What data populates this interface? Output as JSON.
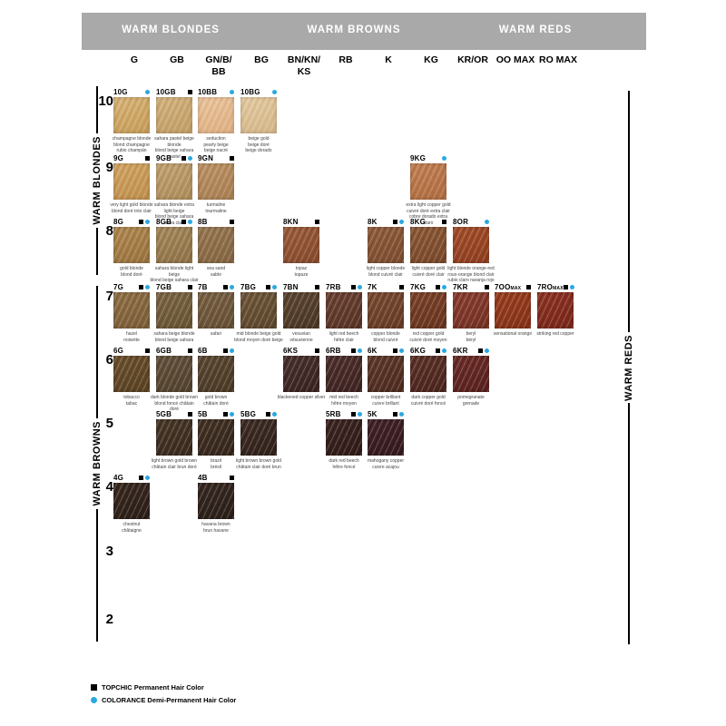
{
  "sections": [
    {
      "label": "WARM BLONDES"
    },
    {
      "label": "WARM BROWNS"
    },
    {
      "label": "WARM REDS"
    }
  ],
  "column_headers": [
    "G",
    "GB",
    "GN/B/\nBB",
    "BG",
    "BN/KN/\nKS",
    "RB",
    "K",
    "KG",
    "KR/OR",
    "OO MAX",
    "RO MAX"
  ],
  "side_labels": {
    "left_top": "WARM BLONDES",
    "left_bottom": "WARM BROWNS",
    "right": "WARM REDS"
  },
  "colors": {
    "topchic": "#000000",
    "colorance": "#2aa9e0",
    "header_bar": "#a9a9a9"
  },
  "legend": [
    {
      "marker": "topchic",
      "label": "TOPCHIC Permanent Hair Color"
    },
    {
      "marker": "colorance",
      "label": "COLORANCE Demi-Permanent Hair Color"
    }
  ],
  "levels": [
    {
      "level": "10",
      "swatches": [
        {
          "code": "10G",
          "suffix": "",
          "col": 0,
          "marks": [
            "colorance"
          ],
          "base": "#d8b57c",
          "streak": "#c49a55",
          "desc": "champagne blonde\nblond champagne\nrubio champán"
        },
        {
          "code": "10GB",
          "suffix": "",
          "col": 1,
          "marks": [
            "topchic"
          ],
          "base": "#d3b382",
          "streak": "#bf9c62",
          "desc": "sahara pastel beige blonde\nblond beige sahara pastel"
        },
        {
          "code": "10BB",
          "suffix": "",
          "col": 2,
          "marks": [
            "colorance"
          ],
          "base": "#e9c69f",
          "streak": "#ddad80",
          "desc": "seduction\npearly beige\nbeige nacré"
        },
        {
          "code": "10BG",
          "suffix": "",
          "col": 3,
          "marks": [
            "colorance"
          ],
          "base": "#e4cba4",
          "streak": "#d3b586",
          "desc": "beige gold\nbeige doré\nbeige dorado"
        }
      ]
    },
    {
      "level": "9",
      "swatches": [
        {
          "code": "9G",
          "suffix": "",
          "col": 0,
          "marks": [
            "topchic"
          ],
          "base": "#d2a667",
          "streak": "#bd8d4a",
          "desc": "very light gold blonde\nblond doré très clair"
        },
        {
          "code": "9GB",
          "suffix": "",
          "col": 1,
          "marks": [
            "topchic",
            "colorance"
          ],
          "base": "#c2a474",
          "streak": "#ab8a58",
          "desc": "sahara blonde extra light beige\nblond beige sahara extra clair"
        },
        {
          "code": "9GN",
          "suffix": "",
          "col": 2,
          "marks": [
            "topchic"
          ],
          "base": "#bd9469",
          "streak": "#a67d50",
          "desc": "turmaline\ntourmaline"
        },
        {
          "code": "9KG",
          "suffix": "",
          "col": 7,
          "marks": [
            "colorance"
          ],
          "base": "#c28257",
          "streak": "#ad6a3e",
          "desc": "extra light copper gold\ncuivré doré extra clair\ncobre dorado extra claro"
        }
      ]
    },
    {
      "level": "8",
      "swatches": [
        {
          "code": "8G",
          "suffix": "",
          "col": 0,
          "marks": [
            "topchic",
            "colorance"
          ],
          "base": "#b08a52",
          "streak": "#97703c",
          "desc": "gold blonde\nblond doré"
        },
        {
          "code": "8GB",
          "suffix": "",
          "col": 1,
          "marks": [
            "topchic",
            "colorance"
          ],
          "base": "#a68a5d",
          "streak": "#8d7045",
          "desc": "sahara blonde light beige\nblond beige sahara clair"
        },
        {
          "code": "8B",
          "suffix": "",
          "col": 2,
          "marks": [
            "topchic"
          ],
          "base": "#997a55",
          "streak": "#82633f",
          "desc": "sea sand\nsable"
        },
        {
          "code": "8KN",
          "suffix": "",
          "col": 4,
          "marks": [
            "topchic"
          ],
          "base": "#9c5f3d",
          "streak": "#84482b",
          "desc": "topaz\ntopaze"
        },
        {
          "code": "8K",
          "suffix": "",
          "col": 6,
          "marks": [
            "topchic",
            "colorance"
          ],
          "base": "#92603f",
          "streak": "#7a4a2d",
          "desc": "light copper blonde\nblond cuivré clair"
        },
        {
          "code": "8KG",
          "suffix": "",
          "col": 7,
          "marks": [
            "topchic"
          ],
          "base": "#8e5c3a",
          "streak": "#774628",
          "desc": "light copper gold\ncuivré doré clair"
        },
        {
          "code": "8OR",
          "suffix": "",
          "col": 8,
          "marks": [
            "colorance"
          ],
          "base": "#a5512d",
          "streak": "#8c3c1e",
          "desc": "light blonde orange-red\nroux-orange blond clair\nrubio claro naranja rojo"
        }
      ]
    },
    {
      "level": "7",
      "swatches": [
        {
          "code": "7G",
          "suffix": "",
          "col": 0,
          "marks": [
            "topchic",
            "colorance"
          ],
          "base": "#91724a",
          "streak": "#795b35",
          "desc": "hazel\nnoisette"
        },
        {
          "code": "7GB",
          "suffix": "",
          "col": 1,
          "marks": [
            "topchic"
          ],
          "base": "#7d6848",
          "streak": "#665232",
          "desc": "sahara beige blonde\nblond beige sahara"
        },
        {
          "code": "7B",
          "suffix": "",
          "col": 2,
          "marks": [
            "topchic",
            "colorance"
          ],
          "base": "#7b6346",
          "streak": "#644d32",
          "desc": "safari"
        },
        {
          "code": "7BG",
          "suffix": "",
          "col": 3,
          "marks": [
            "topchic",
            "colorance"
          ],
          "base": "#71593c",
          "streak": "#5b452b",
          "desc": "mid blonde beige gold\nblond moyen doré beige"
        },
        {
          "code": "7BN",
          "suffix": "",
          "col": 4,
          "marks": [
            "topchic"
          ],
          "base": "#5f4836",
          "streak": "#4a3624",
          "desc": "vesuvian\nvésuvienne"
        },
        {
          "code": "7RB",
          "suffix": "",
          "col": 5,
          "marks": [
            "topchic",
            "colorance"
          ],
          "base": "#6d4536",
          "streak": "#563225",
          "desc": "light red beech\nhêtre clair"
        },
        {
          "code": "7K",
          "suffix": "",
          "col": 6,
          "marks": [
            "topchic"
          ],
          "base": "#7b4d34",
          "streak": "#643a24",
          "desc": "copper blonde\nblond cuivré"
        },
        {
          "code": "7KG",
          "suffix": "",
          "col": 7,
          "marks": [
            "topchic",
            "colorance"
          ],
          "base": "#7d452d",
          "streak": "#66331e",
          "desc": "red copper gold\ncuivré doré moyen"
        },
        {
          "code": "7KR",
          "suffix": "",
          "col": 8,
          "marks": [
            "topchic"
          ],
          "base": "#8b4133",
          "streak": "#722f22",
          "desc": "beryl\nbéryl"
        },
        {
          "code": "7OO",
          "suffix": "MAX",
          "col": 9,
          "marks": [
            "topchic"
          ],
          "base": "#9b4124",
          "streak": "#822f15",
          "desc": "sensational orange"
        },
        {
          "code": "7RO",
          "suffix": "MAX",
          "col": 10,
          "marks": [
            "topchic",
            "colorance"
          ],
          "base": "#8f3626",
          "streak": "#762517",
          "desc": "striking red copper"
        }
      ]
    },
    {
      "level": "6",
      "swatches": [
        {
          "code": "6G",
          "suffix": "",
          "col": 0,
          "marks": [
            "topchic"
          ],
          "base": "#6d5330",
          "streak": "#573f20",
          "desc": "tobacco\ntabac"
        },
        {
          "code": "6GB",
          "suffix": "",
          "col": 1,
          "marks": [
            "topchic"
          ],
          "base": "#665440",
          "streak": "#50402c",
          "desc": "dark blonde gold brown\nblond foncé châtain doré"
        },
        {
          "code": "6B",
          "suffix": "",
          "col": 2,
          "marks": [
            "topchic",
            "colorance"
          ],
          "base": "#5e4b36",
          "streak": "#493824",
          "desc": "gold brown\nchâtain doré"
        },
        {
          "code": "6KS",
          "suffix": "",
          "col": 4,
          "marks": [
            "topchic"
          ],
          "base": "#4b3331",
          "streak": "#382220",
          "desc": "blackened copper silver"
        },
        {
          "code": "6RB",
          "suffix": "",
          "col": 5,
          "marks": [
            "topchic",
            "colorance"
          ],
          "base": "#503330",
          "streak": "#3d2220",
          "desc": "mid red beech\nhêtre moyen"
        },
        {
          "code": "6K",
          "suffix": "",
          "col": 6,
          "marks": [
            "topchic",
            "colorance"
          ],
          "base": "#613c2e",
          "streak": "#4c2a1e",
          "desc": "copper brilliant\ncuivre brillant"
        },
        {
          "code": "6KG",
          "suffix": "",
          "col": 7,
          "marks": [
            "topchic",
            "colorance"
          ],
          "base": "#5e352b",
          "streak": "#49241c",
          "desc": "dark copper gold\ncuivré doré foncé"
        },
        {
          "code": "6KR",
          "suffix": "",
          "col": 8,
          "marks": [
            "topchic",
            "colorance"
          ],
          "base": "#6d302b",
          "streak": "#571f1c",
          "desc": "pomegranate\ngrenade"
        }
      ]
    },
    {
      "level": "5",
      "swatches": [
        {
          "code": "5GB",
          "suffix": "",
          "col": 1,
          "marks": [
            "topchic"
          ],
          "base": "#4b3a2b",
          "streak": "#38291c",
          "desc": "light brown gold brown\nchâtain clair brun doré"
        },
        {
          "code": "5B",
          "suffix": "",
          "col": 2,
          "marks": [
            "topchic",
            "colorance"
          ],
          "base": "#463528",
          "streak": "#34251a",
          "desc": "brazil\nbrésil"
        },
        {
          "code": "5BG",
          "suffix": "",
          "col": 3,
          "marks": [
            "topchic",
            "colorance"
          ],
          "base": "#413028",
          "streak": "#30211a",
          "desc": "light brown brown gold\nchâtain clair doré brun"
        },
        {
          "code": "5RB",
          "suffix": "",
          "col": 5,
          "marks": [
            "topchic",
            "colorance"
          ],
          "base": "#402824",
          "streak": "#2f1a17",
          "desc": "dark red beech\nhêtre foncé"
        },
        {
          "code": "5K",
          "suffix": "",
          "col": 6,
          "marks": [
            "topchic",
            "colorance"
          ],
          "base": "#45262b",
          "streak": "#33181d",
          "desc": "mahogany copper\ncuivre acajou"
        }
      ]
    },
    {
      "level": "4",
      "swatches": [
        {
          "code": "4G",
          "suffix": "",
          "col": 0,
          "marks": [
            "topchic",
            "colorance"
          ],
          "base": "#3b2c23",
          "streak": "#2b1e16",
          "desc": "chestnut\nchâtaigne"
        },
        {
          "code": "4B",
          "suffix": "",
          "col": 2,
          "marks": [
            "topchic"
          ],
          "base": "#392b24",
          "streak": "#2a1e18",
          "desc": "havana brown\nbrun havane"
        }
      ]
    },
    {
      "level": "3",
      "swatches": []
    },
    {
      "level": "2",
      "swatches": []
    }
  ]
}
